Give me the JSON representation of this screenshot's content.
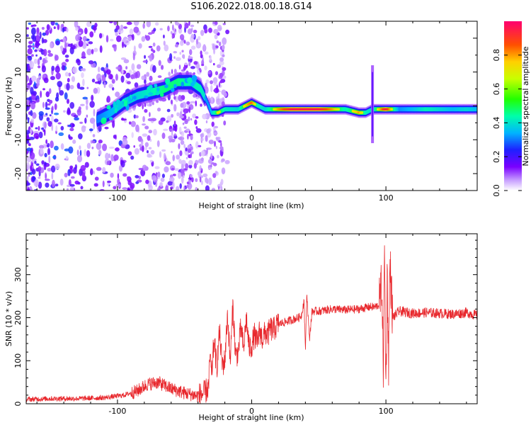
{
  "title": "S106.2022.018.00.18.G14",
  "chart_data": [
    {
      "type": "heatmap",
      "title": "S106.2022.018.00.18.G14",
      "xlabel": "Height of straight line (km)",
      "ylabel": "Frequency (Hz)",
      "xlim": [
        -168,
        168
      ],
      "ylim": [
        -25,
        25
      ],
      "x_ticks": [
        -100,
        0,
        100
      ],
      "x_tick_labels": [
        "-100",
        "0",
        "100"
      ],
      "y_ticks": [
        -20,
        -10,
        0,
        10,
        20
      ],
      "y_tick_labels": [
        "-20",
        "-10",
        "0",
        "10",
        "20"
      ],
      "colorbar": {
        "label": "Normalized spectral amplitude",
        "range": [
          0,
          1
        ],
        "ticks": [
          0.0,
          0.2,
          0.4,
          0.6,
          0.8
        ],
        "tick_labels": [
          "0.0",
          "0.2",
          "0.4",
          "0.6",
          "0.8"
        ],
        "colormap": "rainbow-with-white-low"
      },
      "ridge": {
        "x": [
          -115,
          -105,
          -95,
          -85,
          -75,
          -65,
          -55,
          -45,
          -38,
          -33,
          -30,
          -25,
          -20,
          -10,
          -5,
          0,
          5,
          10,
          20,
          30,
          40,
          50,
          60,
          70,
          80,
          85,
          90,
          95,
          100,
          110,
          120,
          130,
          140,
          150,
          160,
          168
        ],
        "y": [
          -4,
          -2,
          1,
          3,
          4,
          5,
          7,
          7,
          5,
          1,
          -2,
          -2,
          -1,
          -1,
          0,
          1,
          0,
          -1,
          -1,
          -1,
          -1,
          -1,
          -1,
          -1,
          -2,
          -2,
          -1,
          -1,
          -1,
          -1,
          -1,
          -1,
          -1,
          -1,
          -1,
          -1
        ],
        "amplitude": [
          0.35,
          0.4,
          0.45,
          0.45,
          0.5,
          0.55,
          0.55,
          0.5,
          0.5,
          0.45,
          0.5,
          0.75,
          0.6,
          0.55,
          0.75,
          0.85,
          0.6,
          0.55,
          0.8,
          0.95,
          0.95,
          0.95,
          0.8,
          0.6,
          0.8,
          0.6,
          0.55,
          0.75,
          0.95,
          0.45,
          0.5,
          0.6,
          0.55,
          0.5,
          0.55,
          0.5
        ]
      },
      "spike": {
        "x": 90,
        "y_range": [
          -11,
          12
        ]
      }
    },
    {
      "type": "line",
      "xlabel": "Height of straight line (km)",
      "ylabel": "SNR (10 * v/v)",
      "xlim": [
        -168,
        168
      ],
      "ylim": [
        0,
        395
      ],
      "x_ticks": [
        -100,
        0,
        100
      ],
      "x_tick_labels": [
        "-100",
        "0",
        "100"
      ],
      "y_ticks": [
        0,
        100,
        200,
        300
      ],
      "y_tick_labels": [
        "0",
        "100",
        "200",
        "300"
      ],
      "color": "#e8282d",
      "series": [
        {
          "x": [
            -168,
            -150,
            -130,
            -110,
            -95,
            -85,
            -78,
            -70,
            -60,
            -50,
            -40,
            -35,
            -32,
            -31,
            -30,
            -28,
            -26,
            -24,
            -22,
            -20,
            -18,
            -16,
            -14,
            -12,
            -10,
            -8,
            -6,
            -4,
            -2,
            0,
            2,
            4,
            6,
            8,
            10,
            12,
            14,
            16,
            18,
            20,
            25,
            30,
            35,
            37,
            39,
            40,
            41,
            43,
            45,
            50,
            60,
            70,
            80,
            88,
            92,
            95,
            97,
            98,
            99,
            100,
            101,
            102,
            103,
            105,
            110,
            120,
            130,
            140,
            150,
            160,
            168
          ],
          "y": [
            10,
            12,
            12,
            14,
            20,
            30,
            45,
            50,
            35,
            25,
            18,
            25,
            40,
            120,
            60,
            150,
            80,
            170,
            90,
            100,
            210,
            95,
            230,
            110,
            120,
            180,
            125,
            200,
            130,
            135,
            160,
            140,
            170,
            150,
            165,
            160,
            175,
            170,
            180,
            185,
            190,
            195,
            200,
            205,
            240,
            120,
            260,
            150,
            215,
            215,
            220,
            218,
            220,
            225,
            225,
            230,
            280,
            80,
            360,
            30,
            300,
            100,
            330,
            200,
            215,
            210,
            212,
            210,
            208,
            212,
            205
          ]
        }
      ]
    }
  ]
}
